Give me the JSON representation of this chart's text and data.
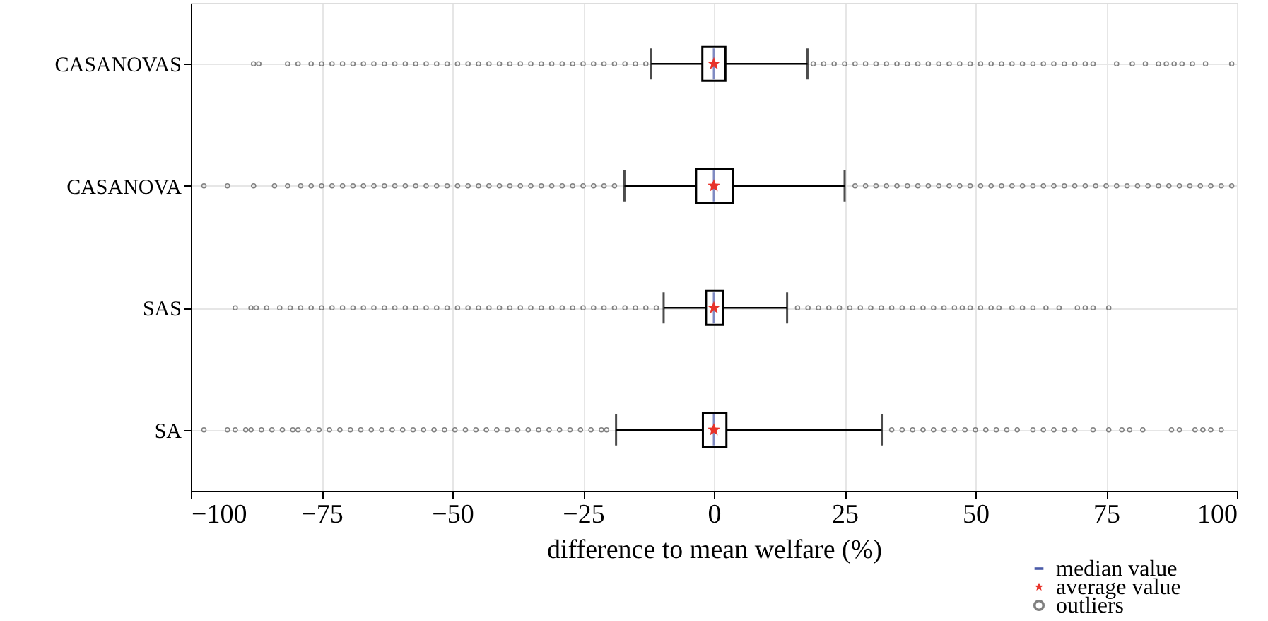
{
  "chart_data": {
    "type": "box",
    "orientation": "horizontal",
    "categories": [
      "CASANOVAS",
      "CASANOVA",
      "SAS",
      "SA"
    ],
    "boxes": [
      {
        "low": -12,
        "q1": -2.2,
        "median": 0,
        "q3": 2.2,
        "high": 17.9,
        "mean": 0,
        "outliers": [
          -88,
          -87,
          -81.5,
          -79.5,
          -77,
          -75,
          -73,
          -71,
          -69,
          -67,
          -65,
          -63,
          -61,
          -59,
          -57,
          -55,
          -53,
          -51,
          -49,
          -47,
          -45,
          -43,
          -41,
          -39,
          -37,
          -35,
          -33,
          -31,
          -29,
          -27,
          -25,
          -23,
          -21,
          -19,
          -17,
          -15,
          -13,
          19,
          21,
          23,
          25,
          27,
          29,
          31,
          33,
          35,
          37,
          39,
          41,
          43,
          45,
          47,
          49,
          51,
          53,
          55,
          57,
          59,
          61,
          63,
          65,
          67,
          69,
          71,
          72.5,
          77,
          80,
          82.5,
          85,
          86.5,
          88,
          89.5,
          91.5,
          94,
          99
        ]
      },
      {
        "low": -17.1,
        "q1": -3.4,
        "median": 0,
        "q3": 3.6,
        "high": 25,
        "mean": 0,
        "outliers": [
          -97.5,
          -93,
          -88,
          -84,
          -81.5,
          -79,
          -77,
          -75,
          -73,
          -71,
          -69,
          -67,
          -65,
          -63,
          -61,
          -59,
          -57,
          -55,
          -53,
          -51,
          -49,
          -47,
          -45,
          -43,
          -41,
          -39,
          -37,
          -35,
          -33,
          -31,
          -29,
          -27,
          -25,
          -23,
          -21,
          -19,
          27,
          29,
          31,
          33,
          35,
          37,
          39,
          41,
          43,
          45,
          47,
          49,
          51,
          53,
          55,
          57,
          59,
          61,
          63,
          65,
          67,
          69,
          71,
          73,
          75,
          77,
          79,
          81,
          83,
          85,
          87,
          89,
          91,
          93,
          95,
          97,
          99
        ]
      },
      {
        "low": -9.6,
        "q1": -1.5,
        "median": 0,
        "q3": 1.7,
        "high": 14,
        "mean": 0,
        "outliers": [
          -91.5,
          -88.5,
          -87.5,
          -85.5,
          -83,
          -81,
          -79,
          -77,
          -75,
          -73,
          -71,
          -69,
          -67,
          -65,
          -63,
          -61,
          -59,
          -57,
          -55,
          -53,
          -51,
          -49,
          -47,
          -45,
          -43,
          -41,
          -39,
          -37,
          -35,
          -33,
          -31,
          -29,
          -27,
          -25,
          -23,
          -21,
          -19,
          -17,
          -15,
          -13,
          -11,
          16,
          18,
          20,
          22,
          24,
          26,
          28,
          30,
          32,
          34,
          36,
          38,
          40,
          42,
          44,
          46,
          47.5,
          49,
          51,
          53,
          54.5,
          57,
          59,
          61,
          63.5,
          66,
          69.5,
          71,
          72.5,
          75.5
        ]
      },
      {
        "low": -18.7,
        "q1": -2.1,
        "median": 0,
        "q3": 2.4,
        "high": 32.1,
        "mean": 0,
        "outliers": [
          -97.5,
          -93,
          -91.5,
          -89.5,
          -88.5,
          -86.5,
          -84.5,
          -82.5,
          -80.5,
          -79.5,
          -77.5,
          -75.5,
          -73.5,
          -71.5,
          -69.5,
          -67.5,
          -65.5,
          -63.5,
          -61.5,
          -59.5,
          -57.5,
          -55.5,
          -53.5,
          -51.5,
          -49.5,
          -47.5,
          -45.5,
          -43.5,
          -41.5,
          -39.5,
          -37.5,
          -35.5,
          -33.5,
          -31.5,
          -29.5,
          -27.5,
          -25.5,
          -23.5,
          -21.5,
          -20.5,
          34,
          36,
          38,
          40,
          42,
          44,
          46,
          48,
          50,
          52,
          54,
          56,
          58,
          61,
          63,
          65,
          67,
          69,
          72.5,
          75.5,
          78,
          79.5,
          82,
          87.5,
          89,
          92,
          93.5,
          95,
          97
        ]
      }
    ],
    "xlabel": "difference to mean welfare (%)",
    "xlim": [
      -100,
      100
    ],
    "xticks": [
      {
        "value": -100,
        "label": "−100"
      },
      {
        "value": -75,
        "label": "−75"
      },
      {
        "value": -50,
        "label": "−50"
      },
      {
        "value": -25,
        "label": "−25"
      },
      0,
      25,
      50,
      75,
      100
    ],
    "grid": true,
    "legend": "bottom right",
    "series": [
      {
        "name": "median value",
        "color": "#4a5aa8",
        "values": [
          null,
          null,
          null,
          null
        ]
      },
      {
        "name": "average value",
        "color": "#e8332a",
        "values": [
          null,
          null,
          null,
          null
        ]
      },
      {
        "name": "outliers",
        "color": "#808080",
        "values": [
          null,
          null,
          null,
          null
        ]
      }
    ]
  }
}
